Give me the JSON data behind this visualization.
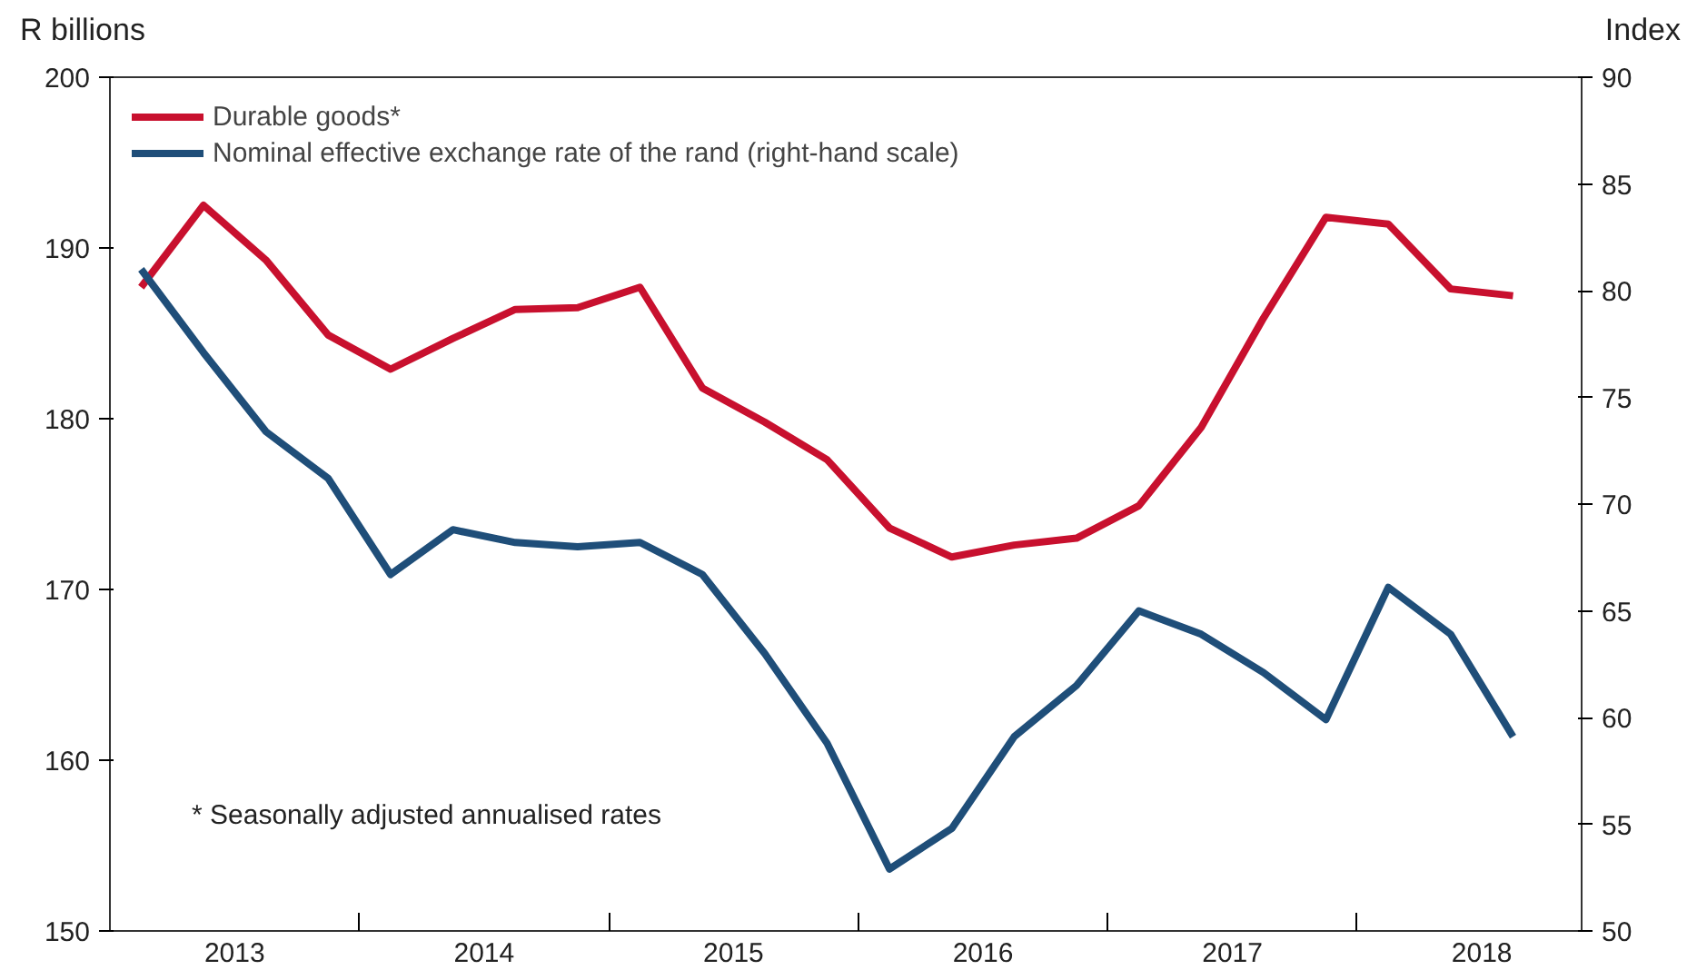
{
  "chart_data": {
    "type": "line",
    "ylabel": "R billions",
    "y2label": "Index",
    "x": [
      2013.125,
      2013.375,
      2013.625,
      2013.875,
      2014.125,
      2014.375,
      2014.625,
      2014.875,
      2015.125,
      2015.375,
      2015.625,
      2015.875,
      2016.125,
      2016.375,
      2016.625,
      2016.875,
      2017.125,
      2017.375,
      2017.625,
      2017.875,
      2018.125,
      2018.375,
      2018.625
    ],
    "series": [
      {
        "name": "Durable goods*",
        "color": "#c8102e",
        "values": [
          187.7,
          192.5,
          189.3,
          184.9,
          182.9,
          184.7,
          186.4,
          186.5,
          187.7,
          181.8,
          179.8,
          177.6,
          173.6,
          171.9,
          172.6,
          173.0,
          174.9,
          179.5,
          185.9,
          191.8,
          191.4,
          187.6,
          187.2
        ]
      },
      {
        "name": "Nominal effective exchange rate of the rand (right-hand scale)",
        "color": "#1f4e79",
        "axis": "y2",
        "values": [
          81.0,
          77.1,
          73.4,
          71.2,
          66.7,
          68.8,
          68.2,
          68.0,
          68.2,
          66.7,
          63.0,
          58.8,
          52.9,
          54.8,
          59.1,
          61.5,
          65.0,
          63.9,
          62.1,
          59.9,
          66.1,
          63.9,
          59.1
        ]
      }
    ],
    "xlim": [
      2013,
      2018.9
    ],
    "xticks": [
      {
        "value": 2013.5,
        "label": "2013"
      },
      {
        "value": 2014,
        "label": null
      },
      {
        "value": 2014.5,
        "label": "2014"
      },
      {
        "value": 2015,
        "label": null
      },
      {
        "value": 2015.5,
        "label": "2015"
      },
      {
        "value": 2016,
        "label": null
      },
      {
        "value": 2016.5,
        "label": "2016"
      },
      {
        "value": 2017,
        "label": null
      },
      {
        "value": 2017.5,
        "label": "2017"
      },
      {
        "value": 2018,
        "label": null
      },
      {
        "value": 2018.5,
        "label": "2018"
      }
    ],
    "ylim": [
      150,
      200
    ],
    "yticks": [
      150,
      160,
      170,
      180,
      190,
      200
    ],
    "y2lim": [
      50,
      90
    ],
    "y2ticks": [
      50,
      55,
      60,
      65,
      70,
      75,
      80,
      85,
      90
    ],
    "annotations": [
      "* Seasonally adjusted annualised rates"
    ],
    "legend": "top left",
    "grid": false,
    "line_style": "solid",
    "marker": "none"
  }
}
